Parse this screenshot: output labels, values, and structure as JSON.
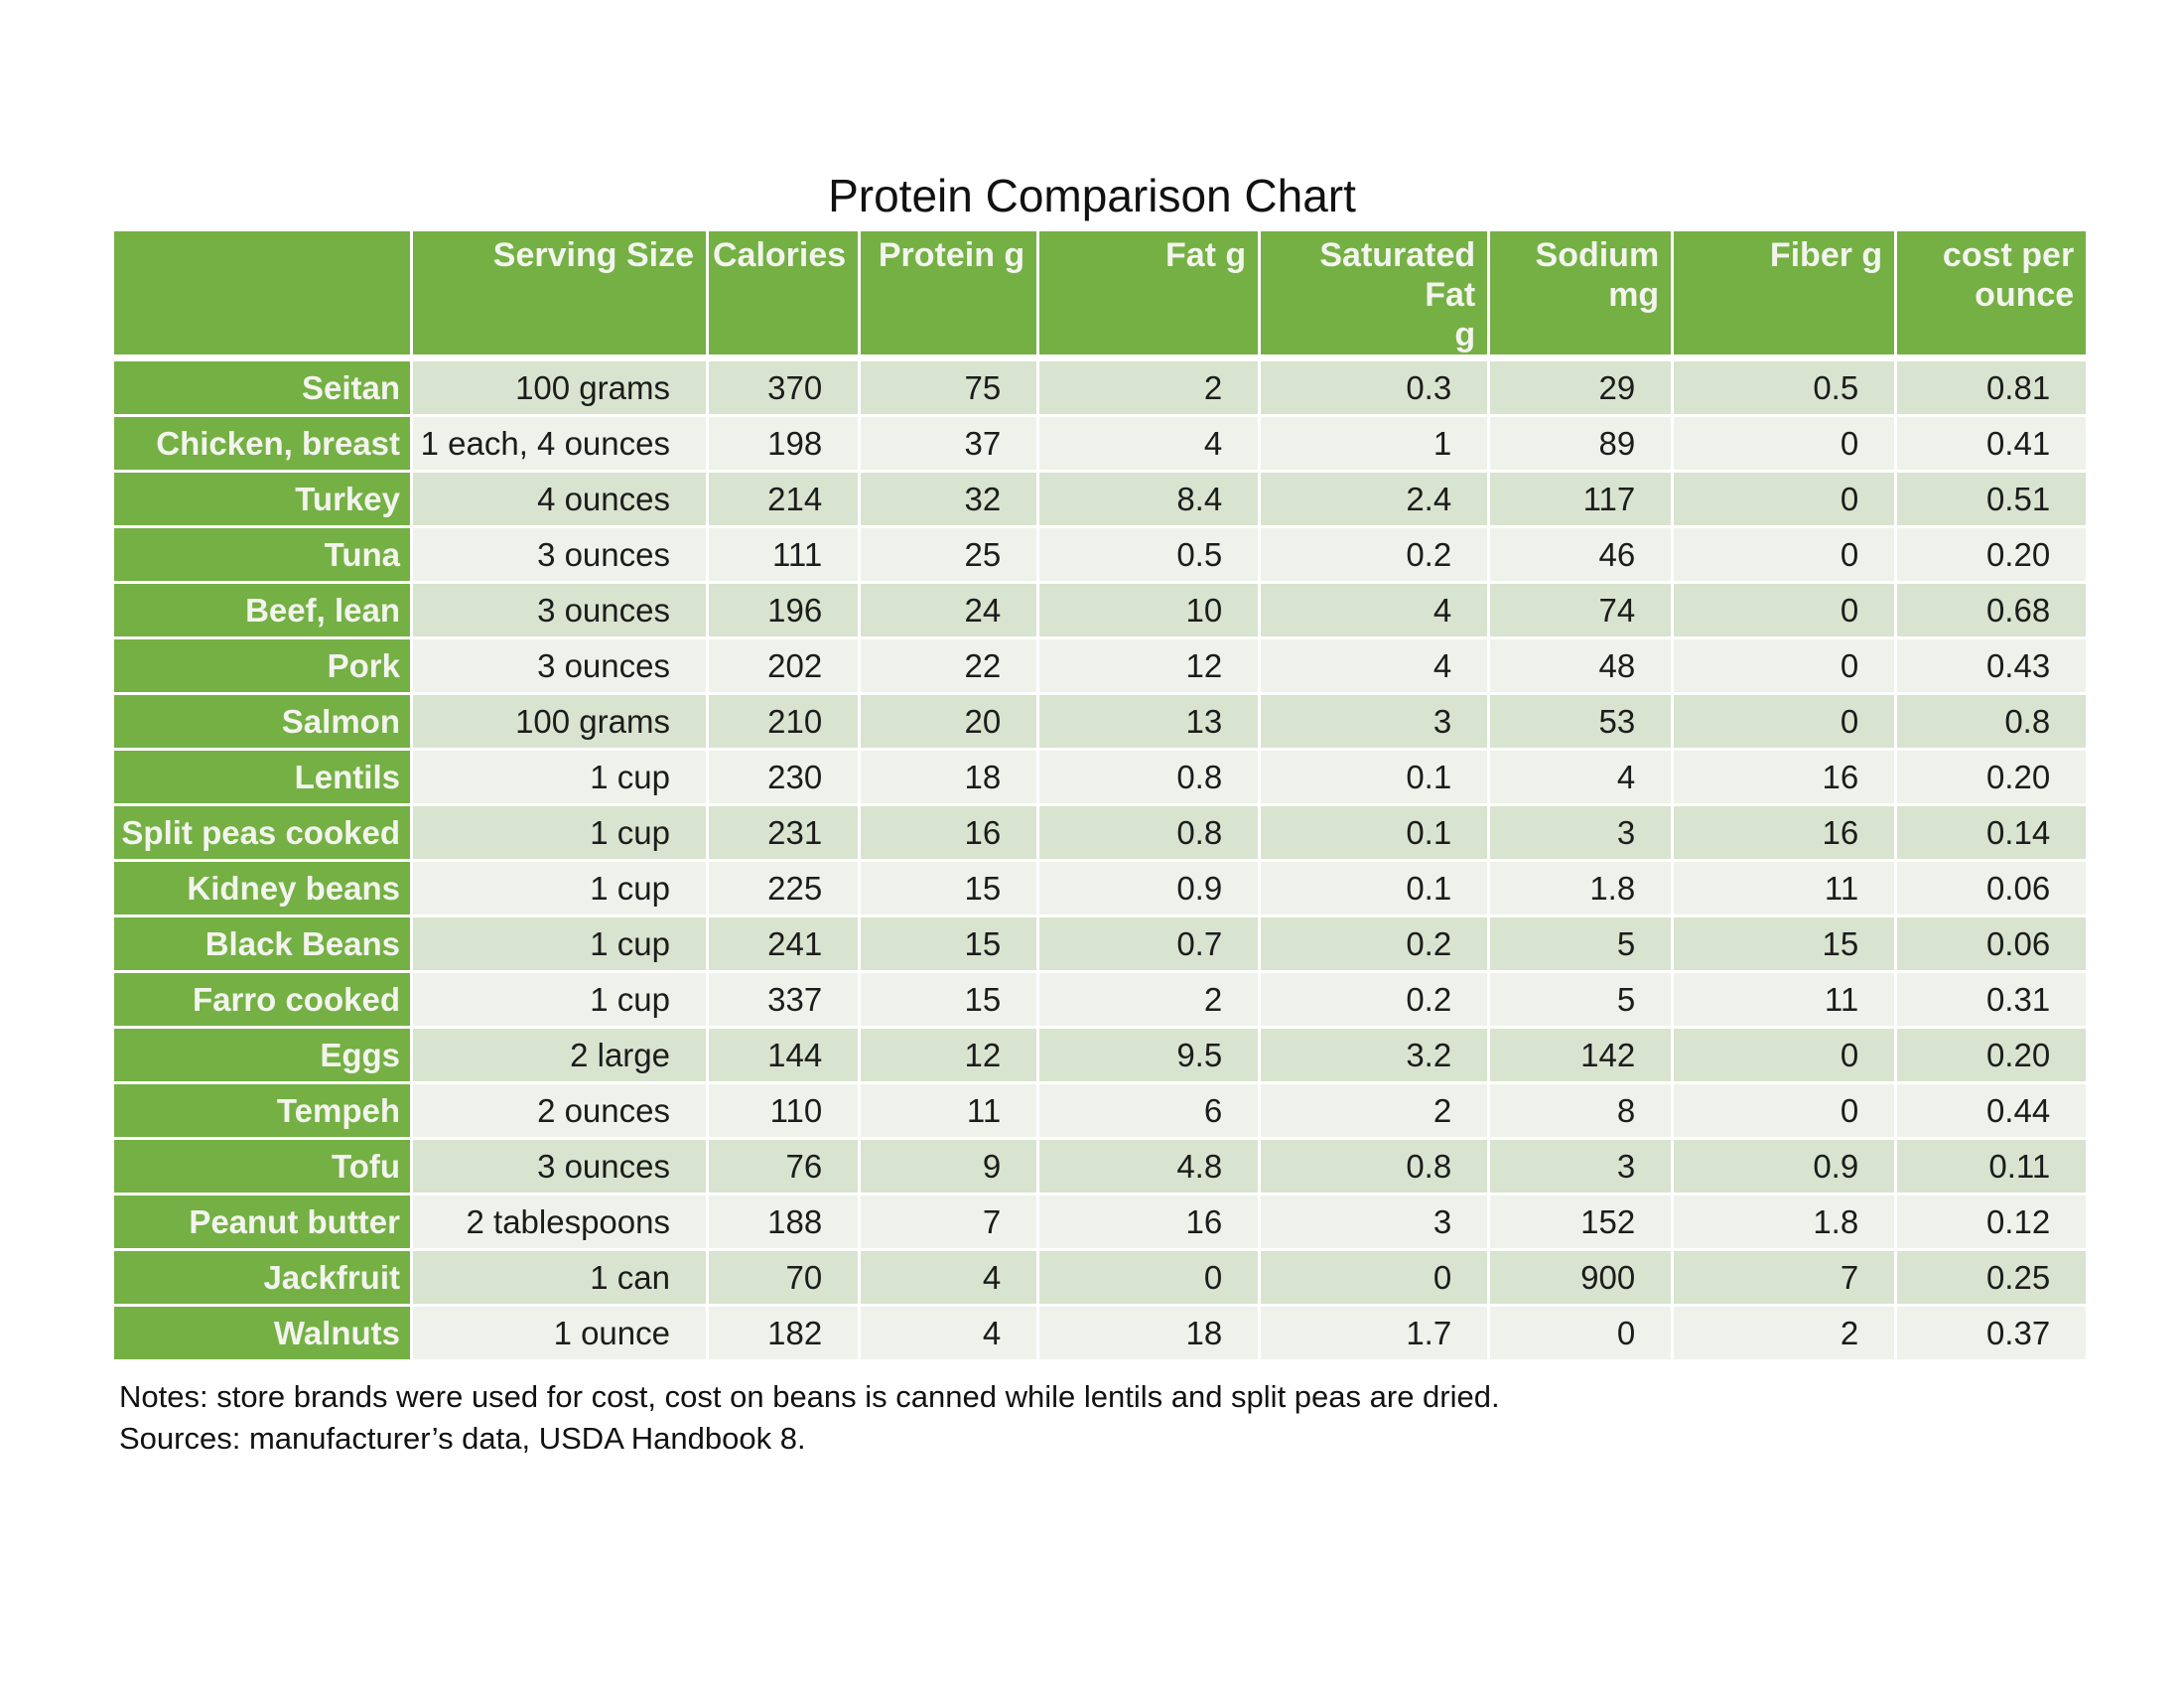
{
  "page": {
    "title": "Protein Comparison Chart",
    "notes_line1": "Notes: store brands were used for cost, cost on beans is canned while lentils and split peas are dried.",
    "notes_line2": "Sources: manufacturer’s data, USDA Handbook 8."
  },
  "colors": {
    "header_green": "#74B044",
    "band_dark": "#D8E4CF",
    "band_light": "#EFF2EA",
    "header_text": "#F3F4EE",
    "body_text": "#1C1C1C"
  },
  "table": {
    "columns": [
      "",
      "Serving Size",
      "Calories",
      "Protein g",
      "Fat g",
      "Saturated Fat\ng",
      "Sodium\nmg",
      "Fiber g",
      "cost per\nounce"
    ],
    "rows": [
      {
        "name": "Seitan",
        "serving": "100 grams",
        "values": [
          "370",
          "75",
          "2",
          "0.3",
          "29",
          "0.5",
          "0.81"
        ]
      },
      {
        "name": "Chicken, breast",
        "serving": "1 each, 4 ounces",
        "values": [
          "198",
          "37",
          "4",
          "1",
          "89",
          "0",
          "0.41"
        ]
      },
      {
        "name": "Turkey",
        "serving": "4 ounces",
        "values": [
          "214",
          "32",
          "8.4",
          "2.4",
          "117",
          "0",
          "0.51"
        ]
      },
      {
        "name": "Tuna",
        "serving": "3 ounces",
        "values": [
          "111",
          "25",
          "0.5",
          "0.2",
          "46",
          "0",
          "0.20"
        ]
      },
      {
        "name": "Beef, lean",
        "serving": "3 ounces",
        "values": [
          "196",
          "24",
          "10",
          "4",
          "74",
          "0",
          "0.68"
        ]
      },
      {
        "name": "Pork",
        "serving": "3 ounces",
        "values": [
          "202",
          "22",
          "12",
          "4",
          "48",
          "0",
          "0.43"
        ]
      },
      {
        "name": "Salmon",
        "serving": "100 grams",
        "values": [
          "210",
          "20",
          "13",
          "3",
          "53",
          "0",
          "0.8"
        ]
      },
      {
        "name": "Lentils",
        "serving": "1 cup",
        "values": [
          "230",
          "18",
          "0.8",
          "0.1",
          "4",
          "16",
          "0.20"
        ]
      },
      {
        "name": "Split peas cooked",
        "serving": "1 cup",
        "values": [
          "231",
          "16",
          "0.8",
          "0.1",
          "3",
          "16",
          "0.14"
        ]
      },
      {
        "name": "Kidney beans",
        "serving": "1 cup",
        "values": [
          "225",
          "15",
          "0.9",
          "0.1",
          "1.8",
          "11",
          "0.06"
        ]
      },
      {
        "name": "Black Beans",
        "serving": "1 cup",
        "values": [
          "241",
          "15",
          "0.7",
          "0.2",
          "5",
          "15",
          "0.06"
        ]
      },
      {
        "name": "Farro cooked",
        "serving": "1 cup",
        "values": [
          "337",
          "15",
          "2",
          "0.2",
          "5",
          "11",
          "0.31"
        ]
      },
      {
        "name": "Eggs",
        "serving": "2 large",
        "values": [
          "144",
          "12",
          "9.5",
          "3.2",
          "142",
          "0",
          "0.20"
        ]
      },
      {
        "name": "Tempeh",
        "serving": "2 ounces",
        "values": [
          "110",
          "11",
          "6",
          "2",
          "8",
          "0",
          "0.44"
        ]
      },
      {
        "name": "Tofu",
        "serving": "3 ounces",
        "values": [
          "76",
          "9",
          "4.8",
          "0.8",
          "3",
          "0.9",
          "0.11"
        ]
      },
      {
        "name": "Peanut butter",
        "serving": "2 tablespoons",
        "values": [
          "188",
          "7",
          "16",
          "3",
          "152",
          "1.8",
          "0.12"
        ]
      },
      {
        "name": "Jackfruit",
        "serving": "1 can",
        "values": [
          "70",
          "4",
          "0",
          "0",
          "900",
          "7",
          "0.25"
        ]
      },
      {
        "name": "Walnuts",
        "serving": "1 ounce",
        "values": [
          "182",
          "4",
          "18",
          "1.7",
          "0",
          "2",
          "0.37"
        ]
      }
    ]
  }
}
